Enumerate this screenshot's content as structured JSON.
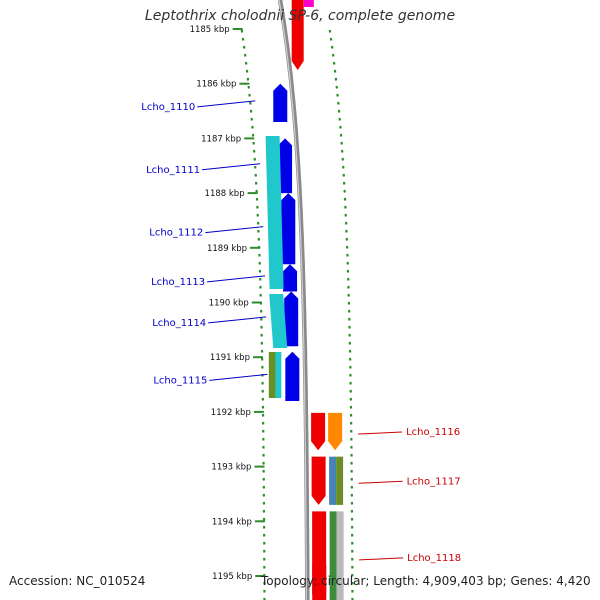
{
  "title": "Leptothrix cholodnii SP-6, complete genome",
  "footer": {
    "accession": "Accession: NC_010524",
    "stats": "Topology: circular; Length: 4,909,403 bp; Genes: 4,420"
  },
  "colors": {
    "backbone": "#8a8a8a",
    "tick": "#2e8b2e",
    "label_left": "#0000c8",
    "label_right": "#cc0000",
    "blue": "#0000e6",
    "cyan": "#20c8cc",
    "red": "#ee0000",
    "orange": "#ff8800",
    "steelblue": "#4682b4",
    "olive": "#6b8e23",
    "green": "#3c8c3c",
    "gray": "#bbbbbb",
    "magenta": "#ff00cc"
  },
  "scale_ticks": [
    "1185 kbp",
    "1186 kbp",
    "1187 kbp",
    "1188 kbp",
    "1189 kbp",
    "1190 kbp",
    "1191 kbp",
    "1192 kbp",
    "1193 kbp",
    "1194 kbp",
    "1195 kbp"
  ],
  "genes_left": [
    {
      "name": "Lcho_1110",
      "start_kbp": 1186.0,
      "end_kbp": 1186.7
    },
    {
      "name": "Lcho_1111",
      "start_kbp": 1187.0,
      "end_kbp": 1188.0
    },
    {
      "name": "Lcho_1112",
      "start_kbp": 1188.0,
      "end_kbp": 1189.3
    },
    {
      "name": "Lcho_1113",
      "start_kbp": 1189.3,
      "end_kbp": 1189.8
    },
    {
      "name": "Lcho_1114",
      "start_kbp": 1189.8,
      "end_kbp": 1190.8
    },
    {
      "name": "Lcho_1115",
      "start_kbp": 1190.9,
      "end_kbp": 1191.8
    }
  ],
  "genes_right": [
    {
      "name": "Lcho_1116",
      "start_kbp": 1192.0,
      "end_kbp": 1192.7
    },
    {
      "name": "Lcho_1117",
      "start_kbp": 1192.8,
      "end_kbp": 1193.7
    },
    {
      "name": "Lcho_1118",
      "start_kbp": 1193.8,
      "end_kbp": 1195.5
    }
  ]
}
